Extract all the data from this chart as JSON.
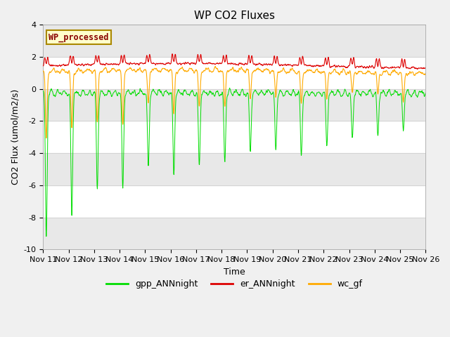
{
  "title": "WP CO2 Fluxes",
  "xlabel": "Time",
  "ylabel": "CO2 Flux (umol/m2/s)",
  "ylim": [
    -10,
    4
  ],
  "n_days": 15,
  "points_per_day": 96,
  "xtick_labels": [
    "Nov 11",
    "Nov 12",
    "Nov 13",
    "Nov 14",
    "Nov 15",
    "Nov 16",
    "Nov 17",
    "Nov 18",
    "Nov 19",
    "Nov 20",
    "Nov 21",
    "Nov 22",
    "Nov 23",
    "Nov 24",
    "Nov 25",
    "Nov 26"
  ],
  "colors": {
    "gpp": "#00dd00",
    "er": "#dd0000",
    "wc": "#ffaa00"
  },
  "legend_label": "WP_processed",
  "legend_text_color": "#880000",
  "legend_bg_color": "#ffffcc",
  "legend_edge_color": "#aa8800",
  "line_labels": [
    "gpp_ANNnight",
    "er_ANNnight",
    "wc_gf"
  ],
  "background_color": "#f0f0f0",
  "plot_bg_color": "#ffffff",
  "band_color": "#e8e8e8",
  "title_fontsize": 11,
  "axis_fontsize": 9,
  "tick_fontsize": 8
}
